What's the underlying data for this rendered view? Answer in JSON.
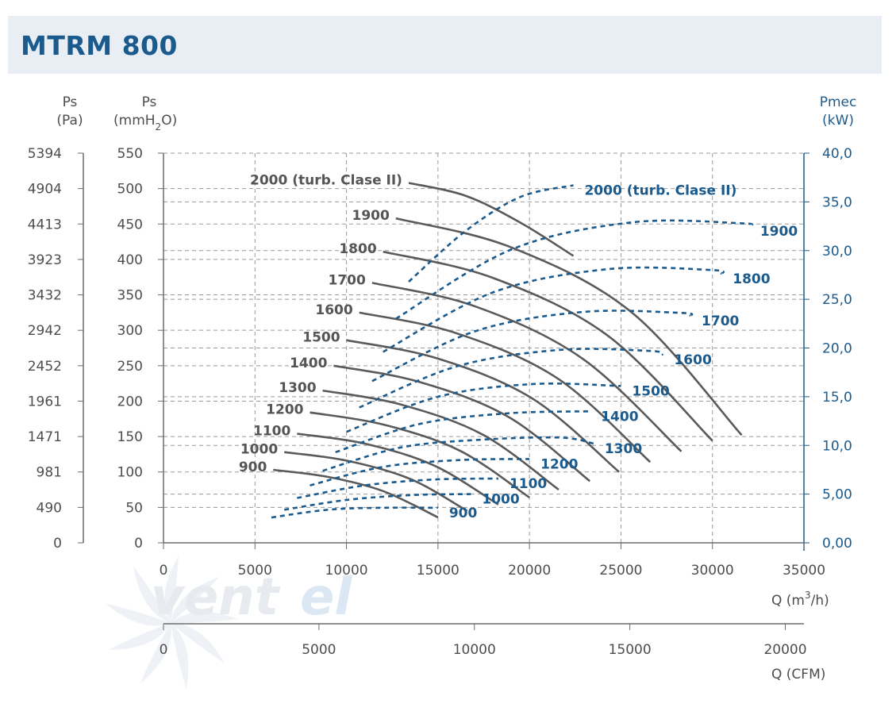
{
  "title": "MTRM 800",
  "chart_data": {
    "type": "line",
    "x_label_m3h": "Q (m³/h)",
    "x_label_m3h_main": "Q (m",
    "x_label_m3h_sup": "3",
    "x_label_m3h_end": "/h)",
    "x_label_cfm": "Q (CFM)",
    "xlim_m3h": [
      0,
      35000
    ],
    "xticks_m3h": [
      "0",
      "5000",
      "10000",
      "15000",
      "20000",
      "25000",
      "30000",
      "35000"
    ],
    "xlim_cfm": [
      0,
      20600
    ],
    "xticks_cfm": [
      "0",
      "5000",
      "10000",
      "15000",
      "20000"
    ],
    "y_left_pa_label_1": "Ps",
    "y_left_pa_label_2": "(Pa)",
    "y_left_pa_ticks": [
      "5394",
      "4904",
      "4413",
      "3923",
      "3432",
      "2942",
      "2452",
      "1961",
      "1471",
      "981",
      "490",
      "0"
    ],
    "y_left_mm_label_1": "Ps",
    "y_left_mm_label_2a": "(mmH",
    "y_left_mm_label_2b": "2",
    "y_left_mm_label_2c": "O)",
    "y_left_mm_ticks": [
      "550",
      "500",
      "450",
      "400",
      "350",
      "300",
      "250",
      "200",
      "150",
      "100",
      "50",
      "0"
    ],
    "ylim_mm": [
      0,
      550
    ],
    "y_right_label_1": "Pmec",
    "y_right_label_2": "(kW)",
    "y_right_ticks": [
      "40,0",
      "35,0",
      "30,0",
      "25,0",
      "20,0",
      "15,0",
      "10,0",
      "5,00",
      "0,00"
    ],
    "ylim_kw": [
      0,
      40
    ],
    "grid": true,
    "pressure_series": [
      {
        "name": "900",
        "points": [
          [
            6000,
            103
          ],
          [
            9000,
            93
          ],
          [
            12000,
            73
          ],
          [
            15000,
            36
          ]
        ]
      },
      {
        "name": "1000",
        "points": [
          [
            6600,
            128
          ],
          [
            10000,
            116
          ],
          [
            13500,
            90
          ],
          [
            16600,
            45
          ]
        ]
      },
      {
        "name": "1100",
        "points": [
          [
            7300,
            154
          ],
          [
            11000,
            140
          ],
          [
            14800,
            109
          ],
          [
            18300,
            54
          ]
        ]
      },
      {
        "name": "1200",
        "points": [
          [
            8000,
            184
          ],
          [
            12000,
            167
          ],
          [
            16200,
            130
          ],
          [
            20000,
            64
          ]
        ]
      },
      {
        "name": "1300",
        "points": [
          [
            8700,
            215
          ],
          [
            13000,
            195
          ],
          [
            17500,
            152
          ],
          [
            21600,
            75
          ]
        ]
      },
      {
        "name": "1400",
        "points": [
          [
            9300,
            250
          ],
          [
            14000,
            227
          ],
          [
            18900,
            177
          ],
          [
            23300,
            87
          ]
        ]
      },
      {
        "name": "1500",
        "points": [
          [
            10000,
            286
          ],
          [
            15000,
            260
          ],
          [
            20200,
            203
          ],
          [
            24900,
            100
          ]
        ]
      },
      {
        "name": "1600",
        "points": [
          [
            10700,
            325
          ],
          [
            16000,
            296
          ],
          [
            21600,
            231
          ],
          [
            26600,
            114
          ]
        ]
      },
      {
        "name": "1700",
        "points": [
          [
            11400,
            367
          ],
          [
            17000,
            334
          ],
          [
            22900,
            260
          ],
          [
            28300,
            129
          ]
        ]
      },
      {
        "name": "1800",
        "points": [
          [
            12000,
            411
          ],
          [
            18000,
            374
          ],
          [
            24300,
            292
          ],
          [
            30000,
            144
          ]
        ]
      },
      {
        "name": "1900",
        "points": [
          [
            12700,
            458
          ],
          [
            19000,
            417
          ],
          [
            25600,
            325
          ],
          [
            31600,
            152
          ]
        ]
      },
      {
        "name": "2000 (turb. Clase II)",
        "points": [
          [
            13400,
            508
          ],
          [
            16500,
            490
          ],
          [
            19500,
            452
          ],
          [
            22400,
            405
          ]
        ]
      }
    ],
    "power_series": [
      {
        "name": "900",
        "points": [
          [
            5900,
            2.6
          ],
          [
            9000,
            3.4
          ],
          [
            12000,
            3.6
          ],
          [
            15000,
            3.6
          ]
        ]
      },
      {
        "name": "1000",
        "points": [
          [
            6600,
            3.4
          ],
          [
            10000,
            4.4
          ],
          [
            13500,
            4.9
          ],
          [
            16800,
            5.0
          ]
        ]
      },
      {
        "name": "1100",
        "points": [
          [
            7300,
            4.6
          ],
          [
            11000,
            5.9
          ],
          [
            14800,
            6.5
          ],
          [
            18300,
            6.6
          ]
        ]
      },
      {
        "name": "1200",
        "points": [
          [
            8000,
            5.9
          ],
          [
            12000,
            7.8
          ],
          [
            16200,
            8.5
          ],
          [
            20000,
            8.6
          ]
        ]
      },
      {
        "name": "1300",
        "points": [
          [
            8700,
            7.4
          ],
          [
            13000,
            9.8
          ],
          [
            17500,
            10.6
          ],
          [
            21700,
            10.8
          ],
          [
            23500,
            10.2
          ]
        ]
      },
      {
        "name": "1400",
        "points": [
          [
            9400,
            9.3
          ],
          [
            14000,
            12.2
          ],
          [
            18900,
            13.3
          ],
          [
            23300,
            13.5
          ]
        ]
      },
      {
        "name": "1500",
        "points": [
          [
            10000,
            11.4
          ],
          [
            15000,
            15.0
          ],
          [
            20200,
            16.3
          ],
          [
            25000,
            16.1
          ]
        ]
      },
      {
        "name": "1600",
        "points": [
          [
            10700,
            13.9
          ],
          [
            16000,
            18.1
          ],
          [
            21600,
            19.8
          ],
          [
            26600,
            19.7
          ],
          [
            27300,
            19.3
          ]
        ]
      },
      {
        "name": "1700",
        "points": [
          [
            11400,
            16.6
          ],
          [
            17000,
            21.7
          ],
          [
            22900,
            23.7
          ],
          [
            28300,
            23.6
          ],
          [
            28800,
            23.3
          ]
        ]
      },
      {
        "name": "1800",
        "points": [
          [
            12000,
            19.6
          ],
          [
            18000,
            25.7
          ],
          [
            24300,
            28.1
          ],
          [
            30000,
            28.0
          ],
          [
            30500,
            27.6
          ]
        ]
      },
      {
        "name": "1900",
        "points": [
          [
            12700,
            23.0
          ],
          [
            19000,
            30.1
          ],
          [
            25600,
            32.9
          ],
          [
            31600,
            32.8
          ],
          [
            32000,
            32.5
          ]
        ]
      },
      {
        "name": "2000 (turb. Clase II)",
        "points": [
          [
            13400,
            26.8
          ],
          [
            16500,
            32.0
          ],
          [
            19500,
            35.5
          ],
          [
            22400,
            36.7
          ]
        ]
      }
    ],
    "pressure_labels": [
      "900",
      "1000",
      "1100",
      "1200",
      "1300",
      "1400",
      "1500",
      "1600",
      "1700",
      "1800",
      "1900",
      "2000 (turb. Clase II)"
    ],
    "power_labels": [
      "900",
      "1000",
      "1100",
      "1200",
      "1300",
      "1400",
      "1500",
      "1600",
      "1700",
      "1800",
      "1900",
      "2000 (turb. Clase II)"
    ],
    "colors": {
      "pressure": "#5a5a5a",
      "power": "#1b5a8c",
      "grid": "#9a9a9a",
      "axis": "#6b6b6b",
      "axis_right": "#1b5a8c"
    }
  },
  "watermark": {
    "text_a": "vent",
    "text_b": "el"
  }
}
